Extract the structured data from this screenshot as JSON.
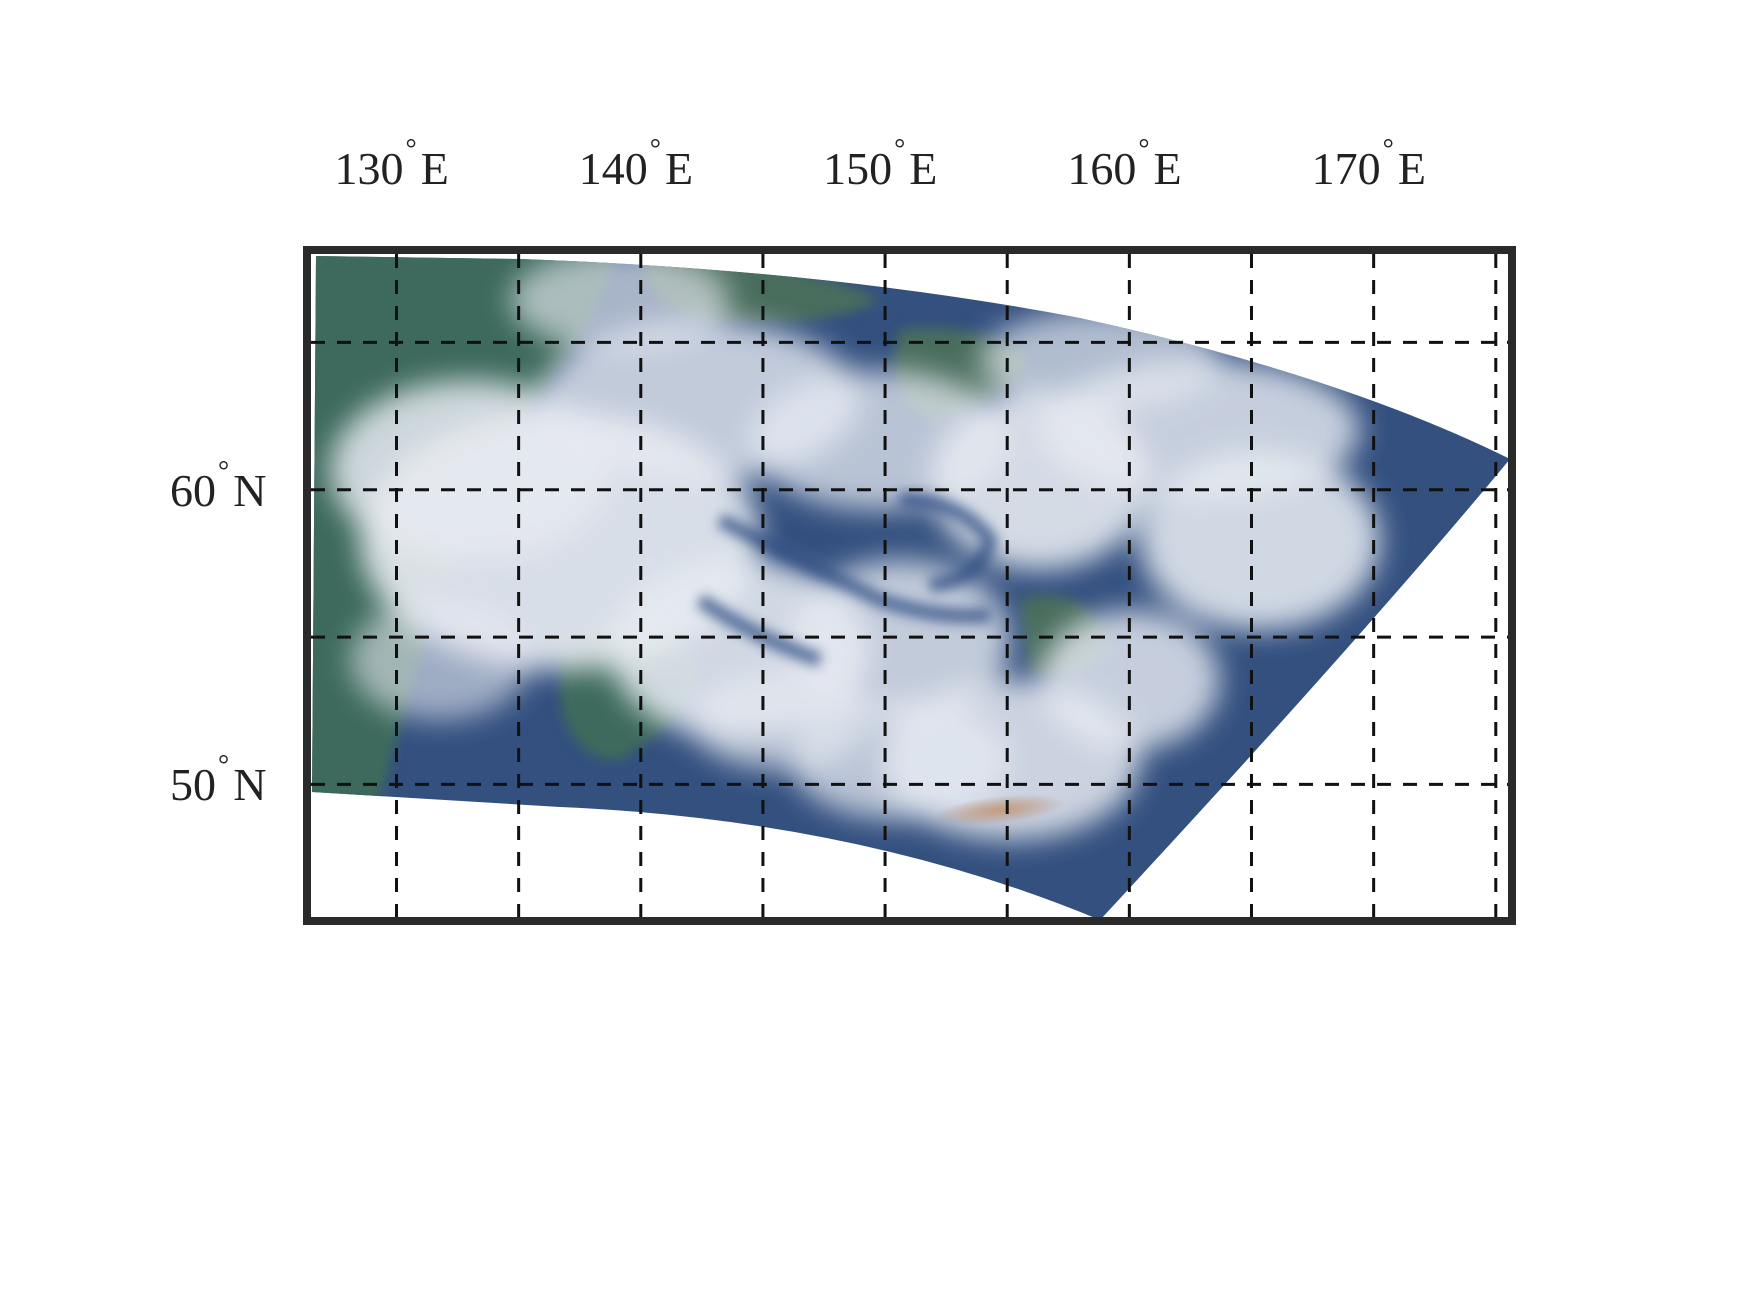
{
  "map": {
    "type": "satellite-true-color",
    "projection": "lat-lon",
    "lon_range": [
      126.5,
      175.5
    ],
    "lat_range": [
      45.5,
      68
    ],
    "lon_ticks": [
      {
        "value": 130,
        "num": "130",
        "hemi": "E"
      },
      {
        "value": 140,
        "num": "140",
        "hemi": "E"
      },
      {
        "value": 150,
        "num": "150",
        "hemi": "E"
      },
      {
        "value": 160,
        "num": "160",
        "hemi": "E"
      },
      {
        "value": 170,
        "num": "170",
        "hemi": "E"
      }
    ],
    "lat_ticks": [
      {
        "value": 60,
        "num": "60",
        "hemi": "N"
      },
      {
        "value": 50,
        "num": "50",
        "hemi": "N"
      }
    ],
    "degree_symbol": "°",
    "gridlines": "dashed",
    "grid_lon_step": 5,
    "grid_lat_step": 5,
    "colors": {
      "frame": "#2a2a2a",
      "grid": "#111111",
      "ocean": "#2f4a78",
      "land": "#3f6b5a",
      "cloud": "#e8ecf2",
      "plume": "#c09070"
    }
  }
}
